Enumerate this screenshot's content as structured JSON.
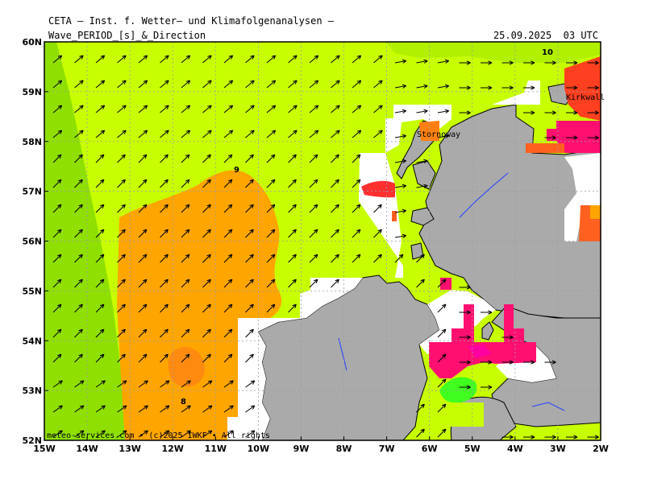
{
  "header": {
    "line1": "CETA – Inst. f. Wetter– und Klimafolgenanalysen –",
    "line2": "Wave_PERIOD_[s]_&_Direction",
    "datetime": "25.09.2025  03 UTC"
  },
  "map": {
    "lat_labels": [
      "60N",
      "59N",
      "58N",
      "57N",
      "56N",
      "55N",
      "54N",
      "53N",
      "52N"
    ],
    "lon_labels": [
      "15W",
      "14W",
      "13W",
      "12W",
      "11W",
      "10W",
      "9W",
      "8W",
      "7W",
      "6W",
      "5W",
      "4W",
      "3W",
      "2W"
    ],
    "place_labels": {
      "stornoway": "Stornoway",
      "kirkwall": "Kirkwall"
    },
    "contour_labels": {
      "c10": "10",
      "c9": "9",
      "c8": "8"
    },
    "credit": "meteo-services.com • (c)2025 IWKF • All rights",
    "colors": {
      "period_7": "#8fe000",
      "period_8": "#c8ff00",
      "period_9": "#ffa500",
      "period_9_5": "#ff8010",
      "period_10": "#ff6020",
      "period_11": "#ff1070",
      "period_high": "#ff0060",
      "land": "#aaaaaa",
      "coast": "#000000",
      "river": "#2040ff"
    },
    "wave_direction": "mostly toward east-northeast"
  }
}
